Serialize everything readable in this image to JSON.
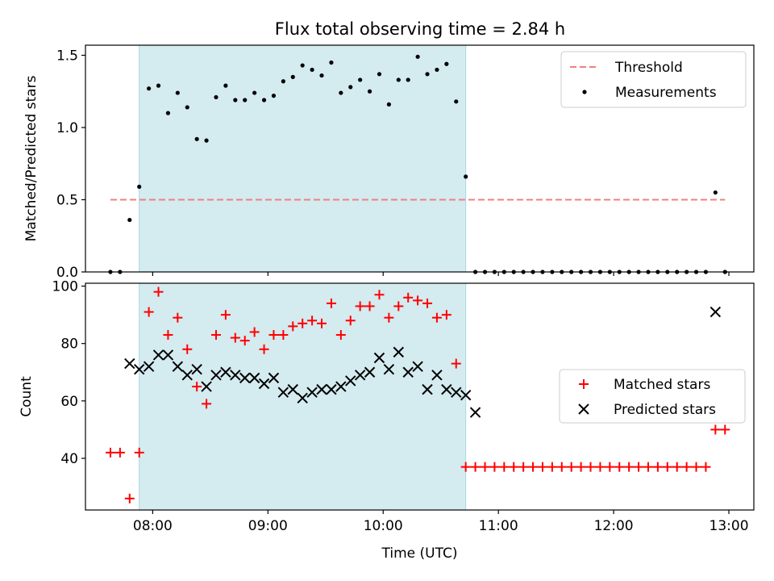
{
  "chart_data": [
    {
      "type": "scatter",
      "title": "Flux total observing time = 2.84 h",
      "xlabel": "",
      "ylabel": "Matched/Predicted stars",
      "x_unit": "time (UTC)",
      "xlim": [
        "07:25",
        "13:13"
      ],
      "ylim": [
        0,
        1.57
      ],
      "yticks": [
        0.0,
        0.5,
        1.0,
        1.5
      ],
      "ytick_labels": [
        "0.0",
        "0.5",
        "1.0",
        "1.5"
      ],
      "shaded_interval": [
        "07:53",
        "10:43"
      ],
      "shade_color": "#d4ebf0",
      "legend_position": "top-right",
      "threshold": {
        "name": "Threshold",
        "value": 0.5,
        "x_range": [
          "07:38",
          "12:58"
        ],
        "color": "#f08080",
        "style": "dashed"
      },
      "series": [
        {
          "name": "Measurements",
          "marker": "dot",
          "color": "#000000",
          "points": [
            [
              "07:38",
              0.0
            ],
            [
              "07:43",
              0.0
            ],
            [
              "07:48",
              0.36
            ],
            [
              "07:53",
              0.59
            ],
            [
              "07:58",
              1.27
            ],
            [
              "08:03",
              1.29
            ],
            [
              "08:08",
              1.1
            ],
            [
              "08:13",
              1.24
            ],
            [
              "08:18",
              1.14
            ],
            [
              "08:23",
              0.92
            ],
            [
              "08:28",
              0.91
            ],
            [
              "08:33",
              1.21
            ],
            [
              "08:38",
              1.29
            ],
            [
              "08:43",
              1.19
            ],
            [
              "08:48",
              1.19
            ],
            [
              "08:53",
              1.24
            ],
            [
              "08:58",
              1.19
            ],
            [
              "09:03",
              1.22
            ],
            [
              "09:08",
              1.32
            ],
            [
              "09:13",
              1.35
            ],
            [
              "09:18",
              1.43
            ],
            [
              "09:23",
              1.4
            ],
            [
              "09:28",
              1.36
            ],
            [
              "09:33",
              1.45
            ],
            [
              "09:38",
              1.24
            ],
            [
              "09:43",
              1.28
            ],
            [
              "09:48",
              1.33
            ],
            [
              "09:53",
              1.25
            ],
            [
              "09:58",
              1.37
            ],
            [
              "10:03",
              1.16
            ],
            [
              "10:08",
              1.33
            ],
            [
              "10:13",
              1.33
            ],
            [
              "10:18",
              1.49
            ],
            [
              "10:23",
              1.37
            ],
            [
              "10:28",
              1.4
            ],
            [
              "10:33",
              1.44
            ],
            [
              "10:38",
              1.18
            ],
            [
              "10:43",
              0.66
            ],
            [
              "10:48",
              0.0
            ],
            [
              "10:53",
              0.0
            ],
            [
              "10:58",
              0.0
            ],
            [
              "11:03",
              0.0
            ],
            [
              "11:08",
              0.0
            ],
            [
              "11:13",
              0.0
            ],
            [
              "11:18",
              0.0
            ],
            [
              "11:23",
              0.0
            ],
            [
              "11:28",
              0.0
            ],
            [
              "11:33",
              0.0
            ],
            [
              "11:38",
              0.0
            ],
            [
              "11:43",
              0.0
            ],
            [
              "11:48",
              0.0
            ],
            [
              "11:53",
              0.0
            ],
            [
              "11:58",
              0.0
            ],
            [
              "12:03",
              0.0
            ],
            [
              "12:08",
              0.0
            ],
            [
              "12:13",
              0.0
            ],
            [
              "12:18",
              0.0
            ],
            [
              "12:23",
              0.0
            ],
            [
              "12:28",
              0.0
            ],
            [
              "12:33",
              0.0
            ],
            [
              "12:38",
              0.0
            ],
            [
              "12:43",
              0.0
            ],
            [
              "12:48",
              0.0
            ],
            [
              "12:53",
              0.55
            ],
            [
              "12:58",
              0.0
            ]
          ]
        }
      ]
    },
    {
      "type": "scatter",
      "title": "",
      "xlabel": "Time (UTC)",
      "ylabel": "Count",
      "x_unit": "time (UTC)",
      "xlim": [
        "07:25",
        "13:13"
      ],
      "ylim": [
        22,
        101
      ],
      "yticks": [
        40,
        60,
        80,
        100
      ],
      "ytick_labels": [
        "40",
        "60",
        "80",
        "100"
      ],
      "xticks": [
        "08:00",
        "09:00",
        "10:00",
        "11:00",
        "12:00",
        "13:00"
      ],
      "xtick_labels": [
        "08:00",
        "09:00",
        "10:00",
        "11:00",
        "12:00",
        "13:00"
      ],
      "shaded_interval": [
        "07:53",
        "10:43"
      ],
      "shade_color": "#d4ebf0",
      "legend_position": "center-right",
      "series": [
        {
          "name": "Matched stars",
          "marker": "plus",
          "color": "#ff0000",
          "points": [
            [
              "07:38",
              42
            ],
            [
              "07:43",
              42
            ],
            [
              "07:48",
              26
            ],
            [
              "07:53",
              42
            ],
            [
              "07:58",
              91
            ],
            [
              "08:03",
              98
            ],
            [
              "08:08",
              83
            ],
            [
              "08:13",
              89
            ],
            [
              "08:18",
              78
            ],
            [
              "08:23",
              65
            ],
            [
              "08:28",
              59
            ],
            [
              "08:33",
              83
            ],
            [
              "08:38",
              90
            ],
            [
              "08:43",
              82
            ],
            [
              "08:48",
              81
            ],
            [
              "08:53",
              84
            ],
            [
              "08:58",
              78
            ],
            [
              "09:03",
              83
            ],
            [
              "09:08",
              83
            ],
            [
              "09:13",
              86
            ],
            [
              "09:18",
              87
            ],
            [
              "09:23",
              88
            ],
            [
              "09:28",
              87
            ],
            [
              "09:33",
              94
            ],
            [
              "09:38",
              83
            ],
            [
              "09:43",
              88
            ],
            [
              "09:48",
              93
            ],
            [
              "09:53",
              93
            ],
            [
              "09:58",
              97
            ],
            [
              "10:03",
              89
            ],
            [
              "10:08",
              93
            ],
            [
              "10:13",
              96
            ],
            [
              "10:18",
              95
            ],
            [
              "10:23",
              94
            ],
            [
              "10:28",
              89
            ],
            [
              "10:33",
              90
            ],
            [
              "10:38",
              73
            ],
            [
              "10:43",
              37
            ],
            [
              "10:48",
              37
            ],
            [
              "10:53",
              37
            ],
            [
              "10:58",
              37
            ],
            [
              "11:03",
              37
            ],
            [
              "11:08",
              37
            ],
            [
              "11:13",
              37
            ],
            [
              "11:18",
              37
            ],
            [
              "11:23",
              37
            ],
            [
              "11:28",
              37
            ],
            [
              "11:33",
              37
            ],
            [
              "11:38",
              37
            ],
            [
              "11:43",
              37
            ],
            [
              "11:48",
              37
            ],
            [
              "11:53",
              37
            ],
            [
              "11:58",
              37
            ],
            [
              "12:03",
              37
            ],
            [
              "12:08",
              37
            ],
            [
              "12:13",
              37
            ],
            [
              "12:18",
              37
            ],
            [
              "12:23",
              37
            ],
            [
              "12:28",
              37
            ],
            [
              "12:33",
              37
            ],
            [
              "12:38",
              37
            ],
            [
              "12:43",
              37
            ],
            [
              "12:48",
              37
            ],
            [
              "12:53",
              50
            ],
            [
              "12:58",
              50
            ]
          ]
        },
        {
          "name": "Predicted stars",
          "marker": "x",
          "color": "#000000",
          "points": [
            [
              "07:48",
              73
            ],
            [
              "07:53",
              71
            ],
            [
              "07:58",
              72
            ],
            [
              "08:03",
              76
            ],
            [
              "08:08",
              76
            ],
            [
              "08:13",
              72
            ],
            [
              "08:18",
              69
            ],
            [
              "08:23",
              71
            ],
            [
              "08:28",
              65
            ],
            [
              "08:33",
              69
            ],
            [
              "08:38",
              70
            ],
            [
              "08:43",
              69
            ],
            [
              "08:48",
              68
            ],
            [
              "08:53",
              68
            ],
            [
              "08:58",
              66
            ],
            [
              "09:03",
              68
            ],
            [
              "09:08",
              63
            ],
            [
              "09:13",
              64
            ],
            [
              "09:18",
              61
            ],
            [
              "09:23",
              63
            ],
            [
              "09:28",
              64
            ],
            [
              "09:33",
              64
            ],
            [
              "09:38",
              65
            ],
            [
              "09:43",
              67
            ],
            [
              "09:48",
              69
            ],
            [
              "09:53",
              70
            ],
            [
              "09:58",
              75
            ],
            [
              "10:03",
              71
            ],
            [
              "10:08",
              77
            ],
            [
              "10:13",
              70
            ],
            [
              "10:18",
              72
            ],
            [
              "10:23",
              64
            ],
            [
              "10:28",
              69
            ],
            [
              "10:33",
              64
            ],
            [
              "10:38",
              63
            ],
            [
              "10:43",
              62
            ],
            [
              "10:48",
              56
            ],
            [
              "12:53",
              91
            ]
          ]
        }
      ]
    }
  ]
}
